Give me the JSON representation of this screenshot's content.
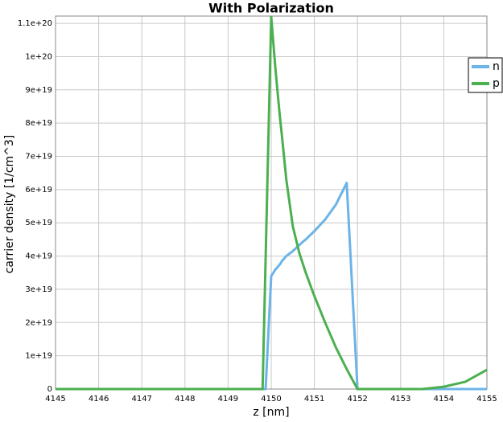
{
  "chart_data": {
    "type": "line",
    "title": "With Polarization",
    "x_label": "z [nm]",
    "y_label": "carrier density [1/cm^3]",
    "x": [
      4145,
      4149.8,
      4149.87,
      4150,
      4150.1,
      4150.2,
      4150.25,
      4150.35,
      4150.5,
      4150.65,
      4150.75,
      4150.8,
      4151,
      4151.25,
      4151.5,
      4151.75,
      4152,
      4153.5,
      4154,
      4154.5,
      4155
    ],
    "series": [
      {
        "name": "n",
        "color": "#6cb4e8",
        "values": [
          0,
          0,
          0,
          3.4e+19,
          3.6e+19,
          3.75e+19,
          3.85e+19,
          4e+19,
          4.15e+19,
          4.33e+19,
          4.45e+19,
          4.5e+19,
          4.75e+19,
          5.1e+19,
          5.55e+19,
          6.2e+19,
          0,
          0,
          0,
          0,
          0
        ]
      },
      {
        "name": "p",
        "color": "#4caf50",
        "values": [
          0,
          0,
          3.9e+19,
          1.12e+20,
          9.6e+19,
          8.2e+19,
          7.6e+19,
          6.3e+19,
          4.9e+19,
          4.1e+19,
          3.7e+19,
          3.5e+19,
          2.8e+19,
          2e+19,
          1.25e+19,
          6e+18,
          0,
          0,
          7e+17,
          2.2e+18,
          5.8e+18
        ]
      }
    ],
    "xlim": [
      4145,
      4155
    ],
    "xticks": [
      4145,
      4146,
      4147,
      4148,
      4149,
      4150,
      4151,
      4152,
      4153,
      4154,
      4155
    ],
    "ylim": [
      0,
      1.122e+20
    ],
    "yticks": [
      0,
      {
        "value": 1e+19,
        "label": "1e+19"
      },
      {
        "value": 2e+19,
        "label": "2e+19"
      },
      {
        "value": 3e+19,
        "label": "3e+19"
      },
      {
        "value": 4e+19,
        "label": "4e+19"
      },
      {
        "value": 5e+19,
        "label": "5e+19"
      },
      {
        "value": 6e+19,
        "label": "6e+19"
      },
      {
        "value": 7e+19,
        "label": "7e+19"
      },
      {
        "value": 8e+19,
        "label": "8e+19"
      },
      {
        "value": 9e+19,
        "label": "9e+19"
      },
      {
        "value": 1e+20,
        "label": "1e+20"
      },
      {
        "value": 1.1e+20,
        "label": "1.1e+20"
      }
    ],
    "grid": true,
    "legend": "top-right"
  }
}
